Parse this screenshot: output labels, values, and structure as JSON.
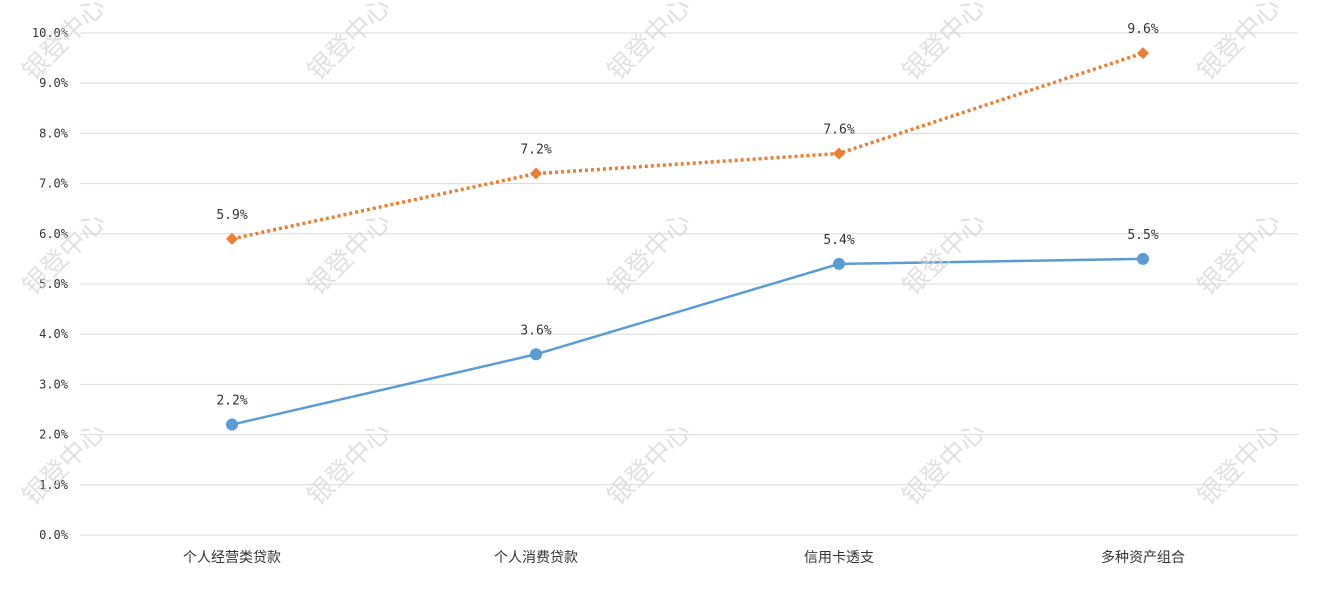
{
  "chart_data": {
    "type": "line",
    "categories": [
      "个人经营类贷款",
      "个人消费贷款",
      "信用卡透支",
      "多种资产组合"
    ],
    "series": [
      {
        "values": [
          5.9,
          7.2,
          7.6,
          9.6
        ],
        "labels": [
          "5.9%",
          "7.2%",
          "7.6%",
          "9.6%"
        ],
        "color": "#ED7D31",
        "line_style": "dotted",
        "marker": "diamond"
      },
      {
        "values": [
          2.2,
          3.6,
          5.4,
          5.5
        ],
        "labels": [
          "2.2%",
          "3.6%",
          "5.4%",
          "5.5%"
        ],
        "color": "#5B9BD5",
        "line_style": "solid",
        "marker": "circle"
      }
    ],
    "y_ticks": [
      "0.0%",
      "1.0%",
      "2.0%",
      "3.0%",
      "4.0%",
      "5.0%",
      "6.0%",
      "7.0%",
      "8.0%",
      "9.0%",
      "10.0%"
    ],
    "ylim": [
      0,
      10
    ],
    "grid": true,
    "legend": "none",
    "gridline_color": "#d9d9d9",
    "watermark": "银登中心"
  }
}
